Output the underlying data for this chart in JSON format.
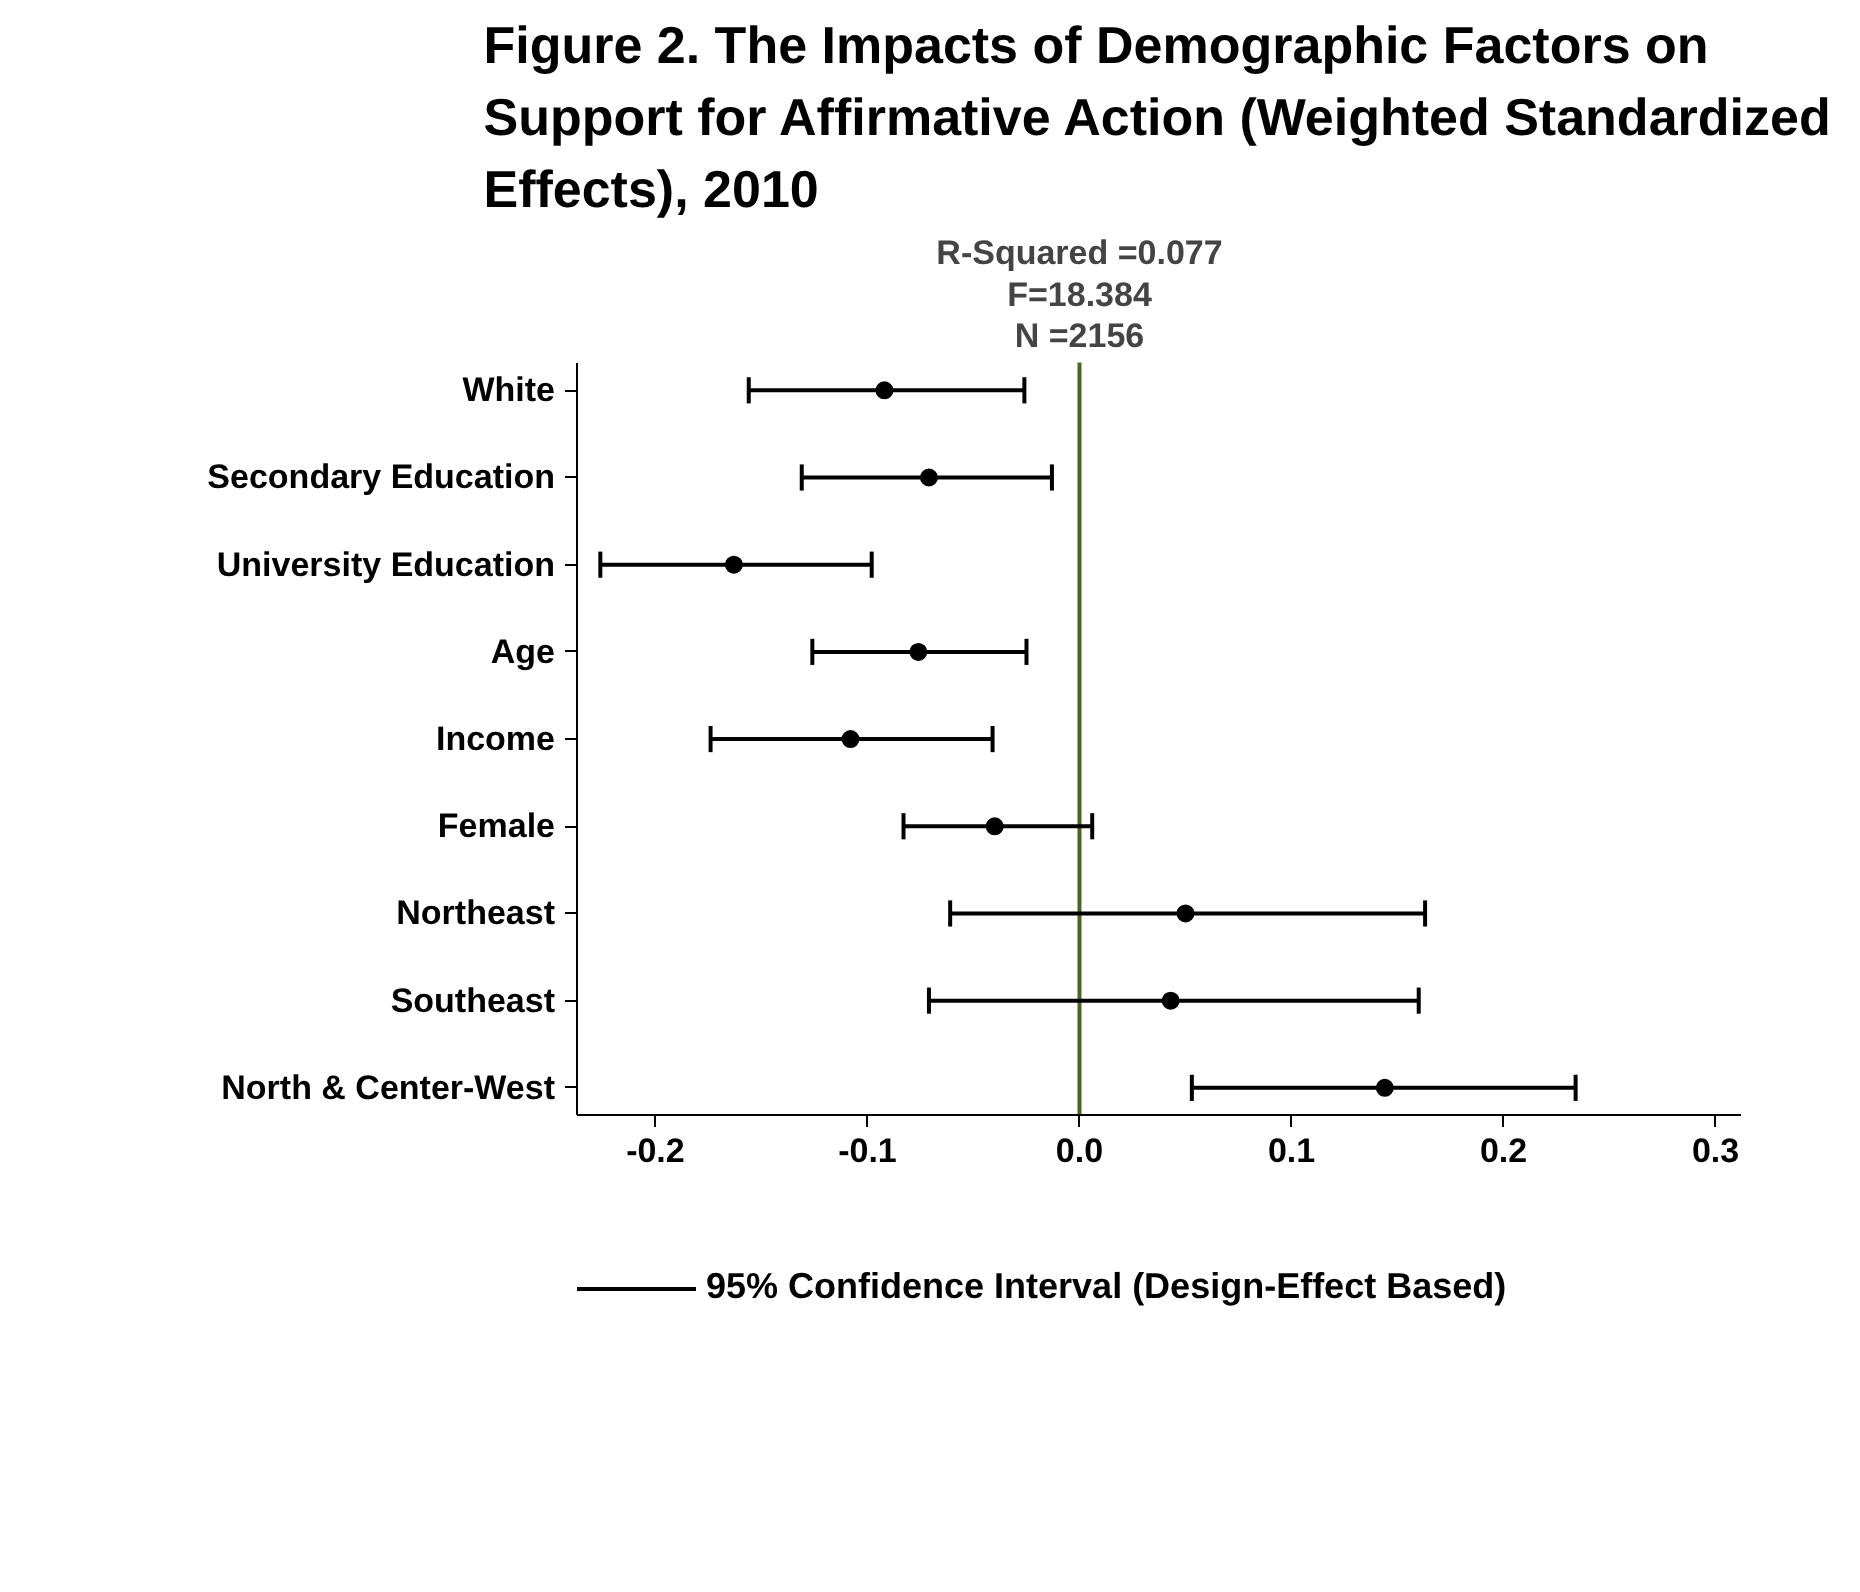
{
  "chart_data": {
    "type": "scatter",
    "title": "Figure 2. The Impacts of Demographic Factors on Support for Affirmative Action (Weighted Standardized Effects), 2010",
    "orientation": "horizontal",
    "categories": [
      "White",
      "Secondary Education",
      "University Education",
      "Age",
      "Income",
      "Female",
      "Northeast",
      "Southeast",
      "North & Center-West"
    ],
    "series": [
      {
        "name": "95% Confidence Interval (Design-Effect Based)",
        "color": "#000000",
        "values": [
          -0.092,
          -0.071,
          -0.163,
          -0.076,
          -0.108,
          -0.04,
          0.05,
          0.043,
          0.144
        ],
        "errors": [
          [
            -0.156,
            -0.026
          ],
          [
            -0.131,
            -0.013
          ],
          [
            -0.226,
            -0.098
          ],
          [
            -0.126,
            -0.025
          ],
          [
            -0.174,
            -0.041
          ],
          [
            -0.083,
            0.006
          ],
          [
            -0.061,
            0.163
          ],
          [
            -0.071,
            0.16
          ],
          [
            0.053,
            0.234
          ]
        ]
      }
    ],
    "xlim": [
      -0.237,
      0.312
    ],
    "xticks": [
      -0.2,
      -0.1,
      {
        "value": 0,
        "label": "0.0"
      },
      0.1,
      0.2,
      0.3
    ],
    "ref_lines": [
      {
        "axis": "x",
        "value": 0,
        "color": "#4f6228"
      }
    ],
    "annotations": [
      "R-Squared =0.077",
      "F=18.384",
      "N =2156"
    ],
    "marker": "circle",
    "grid": false,
    "legend": "bottom"
  }
}
